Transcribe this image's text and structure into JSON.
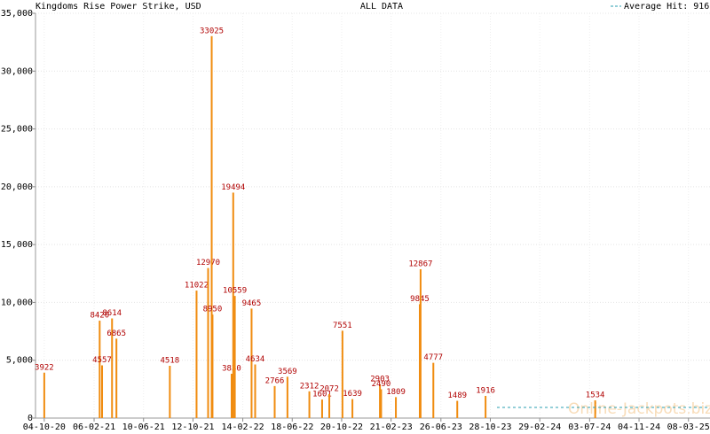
{
  "chart_data": {
    "type": "bar",
    "title": "Kingdoms Rise Power Strike, USD",
    "subtitle": "ALL DATA",
    "watermark": "Online-Jackpots.biz",
    "average": {
      "name": "Average Hit: 916",
      "value": 916,
      "color": "#2a9fb0"
    },
    "xlim": [
      "2020-09-12",
      "2025-05-01"
    ],
    "xticks": [
      {
        "value": "2020-10-04",
        "label": "04-10-20"
      },
      {
        "value": "2021-02-06",
        "label": "06-02-21"
      },
      {
        "value": "2021-06-10",
        "label": "10-06-21"
      },
      {
        "value": "2021-10-12",
        "label": "12-10-21"
      },
      {
        "value": "2022-02-14",
        "label": "14-02-22"
      },
      {
        "value": "2022-06-18",
        "label": "18-06-22"
      },
      {
        "value": "2022-10-20",
        "label": "20-10-22"
      },
      {
        "value": "2023-02-21",
        "label": "21-02-23"
      },
      {
        "value": "2023-06-26",
        "label": "26-06-23"
      },
      {
        "value": "2023-10-28",
        "label": "28-10-23"
      },
      {
        "value": "2024-02-29",
        "label": "29-02-24"
      },
      {
        "value": "2024-07-03",
        "label": "03-07-24"
      },
      {
        "value": "2024-11-04",
        "label": "04-11-24"
      },
      {
        "value": "2025-03-08",
        "label": "08-03-25"
      }
    ],
    "ylim": [
      0,
      35000
    ],
    "yticks": [
      0,
      {
        "value": 5000,
        "label": "5,000"
      },
      {
        "value": 10000,
        "label": "10,000"
      },
      {
        "value": 15000,
        "label": "15,000"
      },
      {
        "value": 20000,
        "label": "20,000"
      },
      {
        "value": 25000,
        "label": "25,000"
      },
      {
        "value": 30000,
        "label": "30,000"
      },
      {
        "value": 35000,
        "label": "35,000"
      }
    ],
    "grid": true,
    "color": "#f08c10",
    "x": [
      "2020-10-04",
      "2021-02-20",
      "2021-02-26",
      "2021-03-23",
      "2021-04-03",
      "2021-08-15",
      "2021-10-21",
      "2021-11-19",
      "2021-11-28",
      "2021-11-30",
      "2022-01-17",
      "2022-01-21",
      "2022-01-25",
      "2022-03-08",
      "2022-03-17",
      "2022-05-05",
      "2022-06-06",
      "2022-07-31",
      "2022-09-01",
      "2022-09-19",
      "2022-10-22",
      "2022-11-16",
      "2023-01-24",
      "2023-01-27",
      "2023-03-05",
      "2023-05-04",
      "2023-05-06",
      "2023-06-07",
      "2023-08-06",
      "2023-10-16",
      "2024-07-17"
    ],
    "values": [
      3922,
      8420,
      4557,
      8614,
      6865,
      4518,
      11022,
      12970,
      33025,
      8950,
      3830,
      19494,
      10559,
      9465,
      4634,
      2766,
      3569,
      2312,
      1601,
      2072,
      7551,
      1639,
      2903,
      2490,
      1809,
      9845,
      12867,
      4777,
      1489,
      1916,
      1534
    ]
  }
}
